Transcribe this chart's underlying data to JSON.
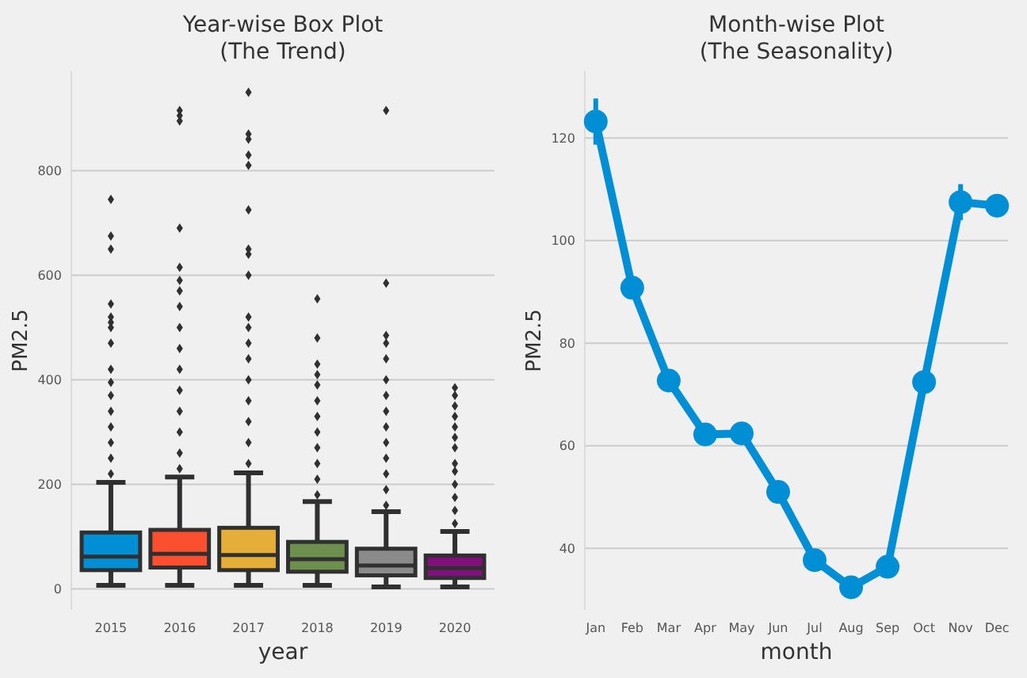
{
  "chart_data": [
    {
      "type": "box",
      "title": "Year-wise Box Plot\n(The Trend)",
      "xlabel": "year",
      "ylabel": "PM2.5",
      "categories": [
        "2015",
        "2016",
        "2017",
        "2018",
        "2019",
        "2020"
      ],
      "colors": [
        "#008fd5",
        "#fc4f30",
        "#e5ae38",
        "#6d904f",
        "#8b8b8b",
        "#810f7c"
      ],
      "boxes": [
        {
          "low": 7,
          "q1": 36,
          "median": 62,
          "q3": 108,
          "high": 204,
          "outliers": [
            220,
            250,
            280,
            310,
            340,
            370,
            395,
            420,
            470,
            500,
            510,
            520,
            545,
            650,
            675,
            745
          ]
        },
        {
          "low": 7,
          "q1": 41,
          "median": 67,
          "q3": 113,
          "high": 214,
          "outliers": [
            230,
            260,
            300,
            340,
            380,
            420,
            460,
            500,
            540,
            570,
            590,
            615,
            690,
            895,
            905,
            915
          ]
        },
        {
          "low": 7,
          "q1": 36,
          "median": 65,
          "q3": 117,
          "high": 222,
          "outliers": [
            240,
            280,
            320,
            360,
            400,
            440,
            470,
            500,
            520,
            600,
            640,
            650,
            725,
            810,
            830,
            860,
            870,
            950
          ]
        },
        {
          "low": 7,
          "q1": 33,
          "median": 57,
          "q3": 90,
          "high": 167,
          "outliers": [
            180,
            210,
            240,
            270,
            300,
            330,
            360,
            390,
            410,
            430,
            480,
            555
          ]
        },
        {
          "low": 4,
          "q1": 26,
          "median": 45,
          "q3": 77,
          "high": 148,
          "outliers": [
            160,
            190,
            220,
            250,
            280,
            310,
            340,
            370,
            400,
            440,
            470,
            485,
            585,
            915
          ]
        },
        {
          "low": 4,
          "q1": 21,
          "median": 40,
          "q3": 64,
          "high": 110,
          "outliers": [
            125,
            150,
            175,
            200,
            225,
            240,
            270,
            290,
            310,
            330,
            350,
            370,
            385
          ]
        }
      ],
      "ylim": [
        -40,
        990
      ],
      "yticks": [
        0,
        200,
        400,
        600,
        800
      ],
      "grid": "y"
    },
    {
      "type": "line",
      "title": "Month-wise Plot\n(The Seasonality)",
      "xlabel": "month",
      "ylabel": "PM2.5",
      "categories": [
        "Jan",
        "Feb",
        "Mar",
        "Apr",
        "May",
        "Jun",
        "Jul",
        "Aug",
        "Sep",
        "Oct",
        "Nov",
        "Dec"
      ],
      "series": [
        {
          "color": "#008fd5",
          "values": [
            123.2,
            90.8,
            72.7,
            62.2,
            62.4,
            51.0,
            37.7,
            32.4,
            36.4,
            72.4,
            107.5,
            106.8
          ],
          "errors": [
            4.5,
            null,
            null,
            null,
            null,
            null,
            null,
            null,
            null,
            null,
            3.5,
            null
          ]
        }
      ],
      "marker": "circle",
      "ylim": [
        28,
        133
      ],
      "yticks": [
        40,
        60,
        80,
        100,
        120
      ],
      "grid": "y"
    }
  ]
}
